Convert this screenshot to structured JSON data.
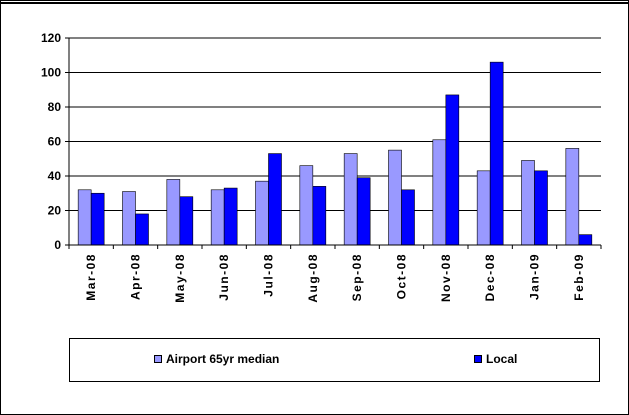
{
  "chart_data": {
    "type": "bar",
    "categories": [
      "Mar-08",
      "Apr-08",
      "May-08",
      "Jun-08",
      "Jul-08",
      "Aug-08",
      "Sep-08",
      "Oct-08",
      "Nov-08",
      "Dec-08",
      "Jan-09",
      "Feb-09"
    ],
    "series": [
      {
        "name": "Airport 65yr median",
        "color": "#9999ff",
        "values": [
          32,
          31,
          38,
          32,
          37,
          46,
          53,
          55,
          61,
          43,
          49,
          56
        ]
      },
      {
        "name": "Local",
        "color": "#0000ff",
        "values": [
          30,
          18,
          28,
          33,
          53,
          34,
          39,
          32,
          87,
          106,
          43,
          6
        ]
      }
    ],
    "ylim": [
      0,
      120
    ],
    "yticks": [
      0,
      20,
      40,
      60,
      80,
      100,
      120
    ],
    "grid": true,
    "legend_position": "bottom",
    "title": "",
    "xlabel": "",
    "ylabel": ""
  }
}
